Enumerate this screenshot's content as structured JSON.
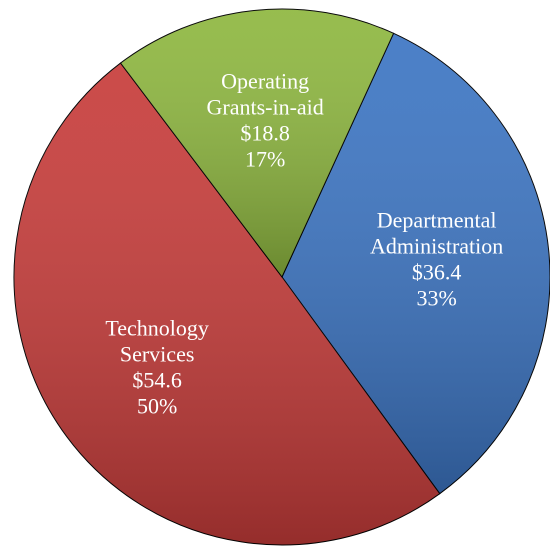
{
  "chart_data": {
    "type": "pie",
    "categories": [
      "Departmental Administration",
      "Technology Services",
      "Operating Grants-in-aid"
    ],
    "values": [
      36.4,
      54.6,
      18.8
    ],
    "value_labels": [
      "$36.4",
      "$54.6",
      "$18.8"
    ],
    "percents": [
      33,
      50,
      17
    ],
    "percent_labels": [
      "33%",
      "50%",
      "17%"
    ],
    "colors": [
      "#3c75c3",
      "#c73c3a",
      "#8eb73f"
    ]
  }
}
